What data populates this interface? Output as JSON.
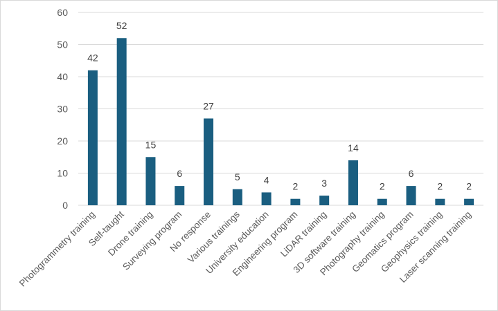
{
  "chart_data": {
    "type": "bar",
    "categories": [
      "Photogrammetry training",
      "Self-taught",
      "Drone training",
      "Surveying program",
      "No response",
      "Various trainings",
      "University education",
      "Engineering program",
      "LiDAR training",
      "3D software training",
      "Photography training",
      "Geomatics program",
      "Geophysics training",
      "Laser scanning training"
    ],
    "values": [
      42,
      52,
      15,
      6,
      27,
      5,
      4,
      2,
      3,
      14,
      2,
      6,
      2,
      2
    ],
    "ylim": [
      0,
      60
    ],
    "yticks": [
      0,
      10,
      20,
      30,
      40,
      50,
      60
    ],
    "grid": true,
    "legend": "none",
    "bar_color": "#1a5e80",
    "data_labels": true
  }
}
